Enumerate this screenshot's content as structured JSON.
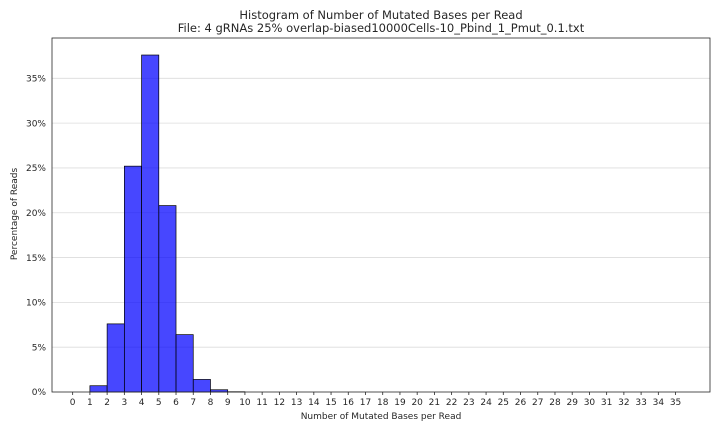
{
  "chart_data": {
    "type": "bar",
    "title": "Histogram of Number of Mutated Bases per Read",
    "subtitle": "File: 4 gRNAs 25% overlap-biased10000Cells-10_Pbind_1_Pmut_0.1.txt",
    "xlabel": "Number of Mutated Bases per Read",
    "ylabel": "Percentage of Reads",
    "categories": [
      0,
      1,
      2,
      3,
      4,
      5,
      6,
      7,
      8,
      9,
      10,
      11,
      12,
      13,
      14,
      15,
      16,
      17,
      18,
      19,
      20,
      21,
      22,
      23,
      24,
      25,
      26,
      27,
      28,
      29,
      30,
      31,
      32,
      33,
      34,
      35
    ],
    "values": [
      0,
      0.7,
      7.6,
      25.2,
      37.6,
      20.8,
      6.4,
      1.4,
      0.25,
      0.03,
      0,
      0,
      0,
      0,
      0,
      0,
      0,
      0,
      0,
      0,
      0,
      0,
      0,
      0,
      0,
      0,
      0,
      0,
      0,
      0,
      0,
      0,
      0,
      0,
      0,
      0
    ],
    "y_unit": "%",
    "yticks": [
      0,
      5,
      10,
      15,
      20,
      25,
      30,
      35
    ],
    "ytick_labels": [
      "0%",
      "5%",
      "10%",
      "15%",
      "20%",
      "25%",
      "30%",
      "35%"
    ],
    "ylim": [
      0,
      39.5
    ],
    "xlim": [
      -1.2,
      37
    ],
    "grid": "horizontal",
    "bar_color": "#0000ff",
    "edge_color": "#000000"
  }
}
